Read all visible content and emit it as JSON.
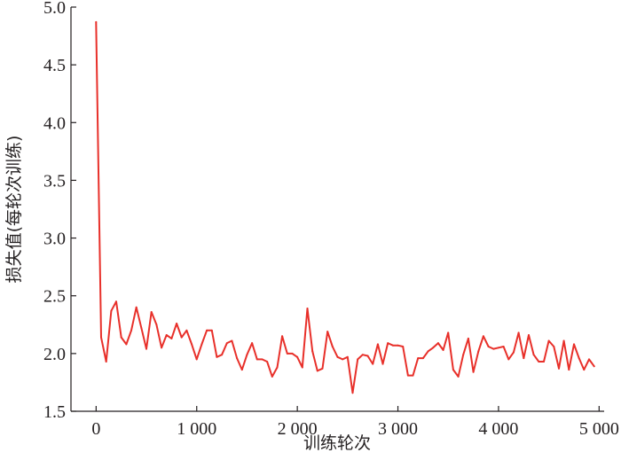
{
  "chart_data": {
    "type": "line",
    "title": "",
    "xlabel": "训练轮次",
    "ylabel": "损失值(每轮次训练)",
    "xlim": [
      -250,
      5050
    ],
    "ylim": [
      1.5,
      5.0
    ],
    "x_ticks": [
      0,
      1000,
      2000,
      3000,
      4000,
      5000
    ],
    "x_tick_labels": [
      "0",
      "1 000",
      "2 000",
      "3 000",
      "4 000",
      "5 000"
    ],
    "y_ticks": [
      1.5,
      2.0,
      2.5,
      3.0,
      3.5,
      4.0,
      4.5,
      5.0
    ],
    "y_tick_labels": [
      "1.5",
      "2.0",
      "2.5",
      "3.0",
      "3.5",
      "4.0",
      "4.5",
      "5.0"
    ],
    "grid": false,
    "line_color": "#e8302a",
    "series": [
      {
        "x": [
          0,
          50,
          100,
          150,
          200,
          250,
          300,
          350,
          400,
          450,
          500,
          550,
          600,
          650,
          700,
          750,
          800,
          850,
          900,
          950,
          1000,
          1050,
          1100,
          1150,
          1200,
          1250,
          1300,
          1350,
          1400,
          1450,
          1500,
          1550,
          1600,
          1650,
          1700,
          1750,
          1800,
          1850,
          1900,
          1950,
          2000,
          2050,
          2100,
          2150,
          2200,
          2250,
          2300,
          2350,
          2400,
          2450,
          2500,
          2550,
          2600,
          2650,
          2700,
          2750,
          2800,
          2850,
          2900,
          2950,
          3000,
          3050,
          3100,
          3150,
          3200,
          3250,
          3300,
          3350,
          3400,
          3450,
          3500,
          3550,
          3600,
          3650,
          3700,
          3750,
          3800,
          3850,
          3900,
          3950,
          4000,
          4050,
          4100,
          4150,
          4200,
          4250,
          4300,
          4350,
          4400,
          4450,
          4500,
          4550,
          4600,
          4650,
          4700,
          4750,
          4800,
          4850,
          4900,
          4950
        ],
        "values": [
          4.87,
          2.14,
          1.93,
          2.37,
          2.45,
          2.14,
          2.08,
          2.2,
          2.4,
          2.22,
          2.04,
          2.36,
          2.25,
          2.05,
          2.16,
          2.13,
          2.26,
          2.14,
          2.2,
          2.08,
          1.95,
          2.08,
          2.2,
          2.2,
          1.97,
          1.99,
          2.09,
          2.11,
          1.96,
          1.86,
          1.99,
          2.09,
          1.95,
          1.95,
          1.93,
          1.8,
          1.88,
          2.15,
          2.0,
          2.0,
          1.97,
          1.88,
          2.39,
          2.02,
          1.85,
          1.87,
          2.19,
          2.06,
          1.97,
          1.95,
          1.97,
          1.66,
          1.95,
          1.99,
          1.98,
          1.91,
          2.08,
          1.91,
          2.09,
          2.07,
          2.07,
          2.06,
          1.81,
          1.81,
          1.96,
          1.96,
          2.02,
          2.05,
          2.09,
          2.03,
          2.18,
          1.86,
          1.8,
          1.99,
          2.13,
          1.84,
          2.02,
          2.15,
          2.06,
          2.04,
          2.05,
          2.06,
          1.95,
          2.01,
          2.18,
          1.96,
          2.16,
          1.99,
          1.93,
          1.93,
          2.11,
          2.06,
          1.87,
          2.11,
          1.86,
          2.08,
          1.96,
          1.86,
          1.95,
          1.89
        ]
      }
    ]
  }
}
